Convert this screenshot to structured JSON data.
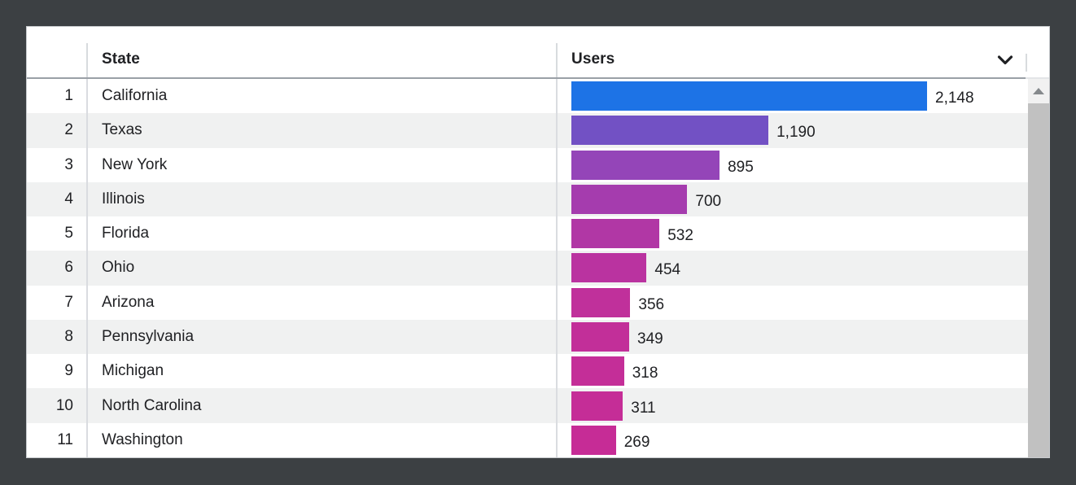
{
  "frame": {
    "background_color": "#3c4043",
    "panel_background": "#ffffff"
  },
  "table": {
    "header": {
      "state_label": "State",
      "users_label": "Users"
    },
    "max_users": 2148,
    "rows": [
      {
        "rank": "1",
        "state": "California",
        "users": 2148,
        "users_display": "2,148",
        "bar_color": "#1d73e6"
      },
      {
        "rank": "2",
        "state": "Texas",
        "users": 1190,
        "users_display": "1,190",
        "bar_color": "#7251c4"
      },
      {
        "rank": "3",
        "state": "New York",
        "users": 895,
        "users_display": "895",
        "bar_color": "#9445b8"
      },
      {
        "rank": "4",
        "state": "Illinois",
        "users": 700,
        "users_display": "700",
        "bar_color": "#a53cae"
      },
      {
        "rank": "5",
        "state": "Florida",
        "users": 532,
        "users_display": "532",
        "bar_color": "#b137a5"
      },
      {
        "rank": "6",
        "state": "Ohio",
        "users": 454,
        "users_display": "454",
        "bar_color": "#ba33a0"
      },
      {
        "rank": "7",
        "state": "Arizona",
        "users": 356,
        "users_display": "356",
        "bar_color": "#c0309b"
      },
      {
        "rank": "8",
        "state": "Pennsylvania",
        "users": 349,
        "users_display": "349",
        "bar_color": "#c22f99"
      },
      {
        "rank": "9",
        "state": "Michigan",
        "users": 318,
        "users_display": "318",
        "bar_color": "#c42e98"
      },
      {
        "rank": "10",
        "state": "North Carolina",
        "users": 311,
        "users_display": "311",
        "bar_color": "#c52d97"
      },
      {
        "rank": "11",
        "state": "Washington",
        "users": 269,
        "users_display": "269",
        "bar_color": "#c62c96"
      }
    ]
  },
  "chart_data": {
    "type": "bar",
    "orientation": "horizontal",
    "categories": [
      "California",
      "Texas",
      "New York",
      "Illinois",
      "Florida",
      "Ohio",
      "Arizona",
      "Pennsylvania",
      "Michigan",
      "North Carolina",
      "Washington"
    ],
    "values": [
      2148,
      1190,
      895,
      700,
      532,
      454,
      356,
      349,
      318,
      311,
      269
    ],
    "title": "",
    "xlabel": "Users",
    "ylabel": "State",
    "xlim": [
      0,
      2148
    ],
    "grid": false,
    "legend": false
  },
  "icons": {
    "sort_indicator": "chevron-down-icon",
    "scroll_up": "scroll-up-arrow-icon"
  },
  "colors": {
    "text": "#202124",
    "column_divider": "#dadce0",
    "header_border": "#9aa0a6",
    "row_alt_background": "#f0f1f1",
    "scrollbar_track": "#f1f1f1",
    "scrollbar_thumb": "#c1c1c1"
  }
}
